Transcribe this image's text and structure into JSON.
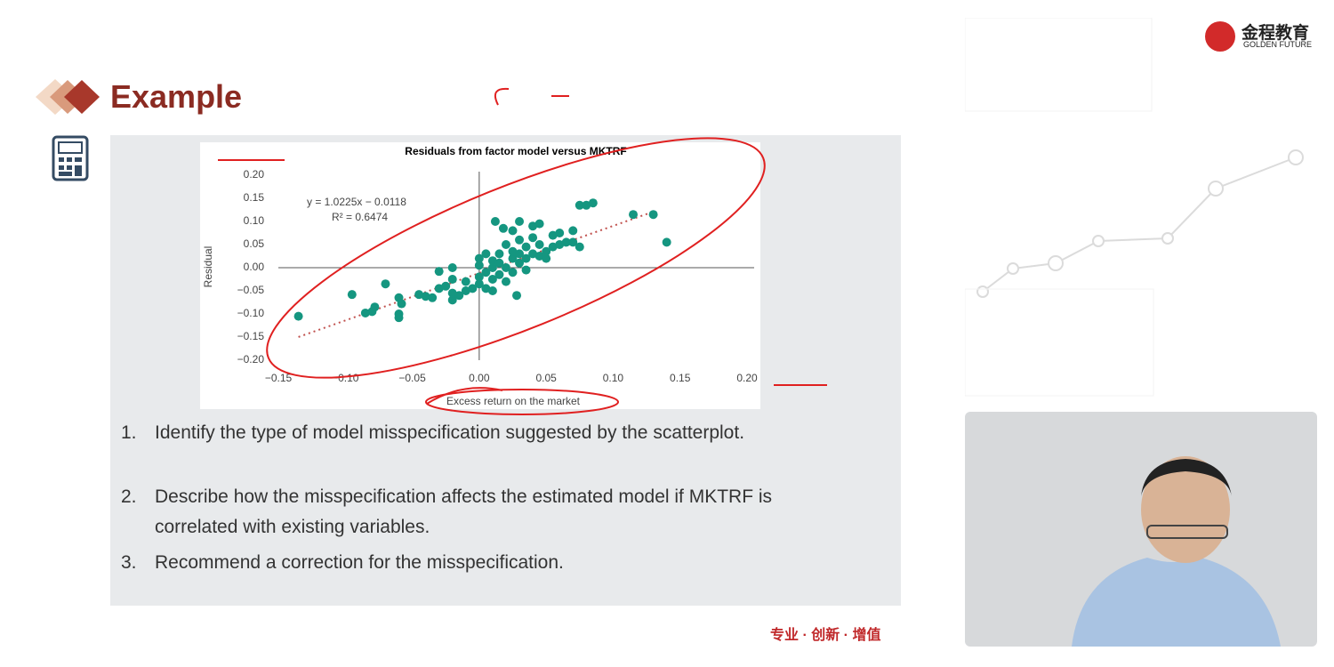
{
  "slide": {
    "title": "Example",
    "logo": {
      "name": "金程教育",
      "sub": "GOLDEN FUTURE"
    },
    "footer": "专业 · 创新 · 增值",
    "questions": [
      {
        "number": "1.",
        "text": "Identify the type of model misspecification suggested by the scatterplot."
      },
      {
        "number": "2.",
        "text": "Describe how the misspecification affects the estimated model if MKTRF is correlated with existing variables."
      },
      {
        "number": "3.",
        "text": "Recommend a correction for the misspecification."
      }
    ]
  },
  "chart_data": {
    "type": "scatter",
    "title": "Residuals from factor model versus MKTRF",
    "x_label": "Excess return on the market",
    "y_label": "Residual",
    "annotations": [
      "y = 1.0225x − 0.0118",
      "R² = 0.6474"
    ],
    "color": "#159680",
    "trendline": {
      "slope": 1.0225,
      "intercept": -0.0118,
      "x_range": [
        -0.135,
        0.13
      ],
      "color": "#c0504d"
    },
    "xlim": [
      -0.15,
      0.2
    ],
    "ylim": [
      -0.2,
      0.2
    ],
    "xticks": [
      {
        "value": -0.15,
        "label": "−0.15"
      },
      {
        "value": -0.1,
        "label": "−0.10"
      },
      {
        "value": -0.05,
        "label": "−0.05"
      },
      {
        "value": 0,
        "label": "0.00"
      },
      {
        "value": 0.05,
        "label": "0.05"
      },
      {
        "value": 0.1,
        "label": "0.10"
      },
      {
        "value": 0.15,
        "label": "0.15"
      },
      {
        "value": 0.2,
        "label": "0.20"
      }
    ],
    "yticks": [
      {
        "value": 0.2,
        "label": "0.20"
      },
      {
        "value": 0.15,
        "label": "0.15"
      },
      {
        "value": 0.1,
        "label": "0.10"
      },
      {
        "value": 0.05,
        "label": "0.05"
      },
      {
        "value": 0,
        "label": "0.00"
      },
      {
        "value": -0.05,
        "label": "−0.05"
      },
      {
        "value": -0.1,
        "label": "−0.10"
      },
      {
        "value": -0.15,
        "label": "−0.15"
      },
      {
        "value": -0.2,
        "label": "−0.20"
      }
    ],
    "x": [
      -0.135,
      -0.095,
      -0.07,
      -0.08,
      -0.078,
      -0.085,
      -0.06,
      -0.058,
      -0.06,
      -0.06,
      -0.045,
      -0.04,
      -0.035,
      -0.03,
      -0.025,
      -0.02,
      -0.02,
      -0.015,
      -0.01,
      -0.005,
      -0.03,
      -0.02,
      -0.01,
      -0.02,
      0,
      0,
      0,
      0,
      0.005,
      0.005,
      0.005,
      0.01,
      0.01,
      0.01,
      0.01,
      0.015,
      0.015,
      0.015,
      0.02,
      0.02,
      0.02,
      0.025,
      0.025,
      0.025,
      0.025,
      0.03,
      0.03,
      0.03,
      0.035,
      0.035,
      0.035,
      0.04,
      0.04,
      0.04,
      0.045,
      0.045,
      0.05,
      0.05,
      0.055,
      0.055,
      0.06,
      0.06,
      0.065,
      0.07,
      0.07,
      0.075,
      0.08,
      0.085,
      0.075,
      0.115,
      0.13,
      0.14,
      0.028,
      0.012,
      0.018,
      0.03,
      0.045
    ],
    "values": [
      -0.105,
      -0.058,
      -0.035,
      -0.095,
      -0.085,
      -0.098,
      -0.065,
      -0.078,
      -0.1,
      -0.108,
      -0.058,
      -0.062,
      -0.065,
      -0.045,
      -0.04,
      -0.055,
      -0.07,
      -0.06,
      -0.05,
      -0.045,
      -0.008,
      0,
      -0.03,
      -0.025,
      -0.02,
      -0.035,
      0.005,
      0.02,
      -0.01,
      0.03,
      -0.045,
      -0.05,
      0,
      0.015,
      -0.025,
      0.01,
      0.03,
      -0.015,
      0.05,
      0,
      -0.03,
      0.02,
      0.035,
      0.08,
      -0.01,
      0.03,
      0.06,
      0.01,
      0.045,
      0.02,
      -0.005,
      0.065,
      0.03,
      0.09,
      0.05,
      0.025,
      0.035,
      0.02,
      0.045,
      0.07,
      0.05,
      0.075,
      0.055,
      0.08,
      0.055,
      0.135,
      0.135,
      0.14,
      0.045,
      0.115,
      0.115,
      0.055,
      -0.06,
      0.1,
      0.085,
      0.1,
      0.095
    ]
  }
}
